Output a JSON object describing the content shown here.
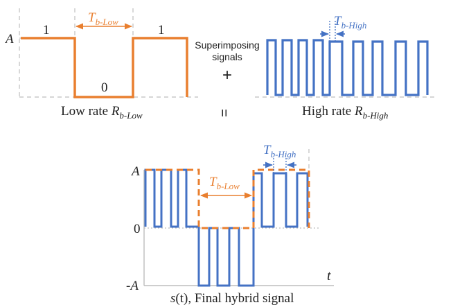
{
  "colors": {
    "low": "#E97F2F",
    "high": "#4472C4",
    "axis": "#bdbdbd",
    "text": "#222222"
  },
  "top_left": {
    "amplitude_label": "A",
    "bit_one_left": "1",
    "bit_zero": "0",
    "bit_one_right": "1",
    "period_label_main": "T",
    "period_label_sub": "b-Low",
    "caption_prefix": "Low rate ",
    "caption_var": "R",
    "caption_sub": "b-Low"
  },
  "middle": {
    "superimposing_line1": "Superimposing",
    "superimposing_line2": "signals",
    "plus_sign": "+",
    "equals_sign": "="
  },
  "top_right": {
    "period_label_main": "T",
    "period_label_sub": "b-High",
    "caption_prefix": "High rate ",
    "caption_var": "R",
    "caption_sub": "b-High"
  },
  "bottom": {
    "amplitude_pos_label": "A",
    "zero_label": "0",
    "amplitude_neg_label": "-A",
    "time_label": "t",
    "low_period_main": "T",
    "low_period_sub": "b-Low",
    "high_period_main": "T",
    "high_period_sub": "b-High",
    "caption_var": "s",
    "caption_arg": "(t)",
    "caption_rest": ", Final hybrid signal"
  }
}
